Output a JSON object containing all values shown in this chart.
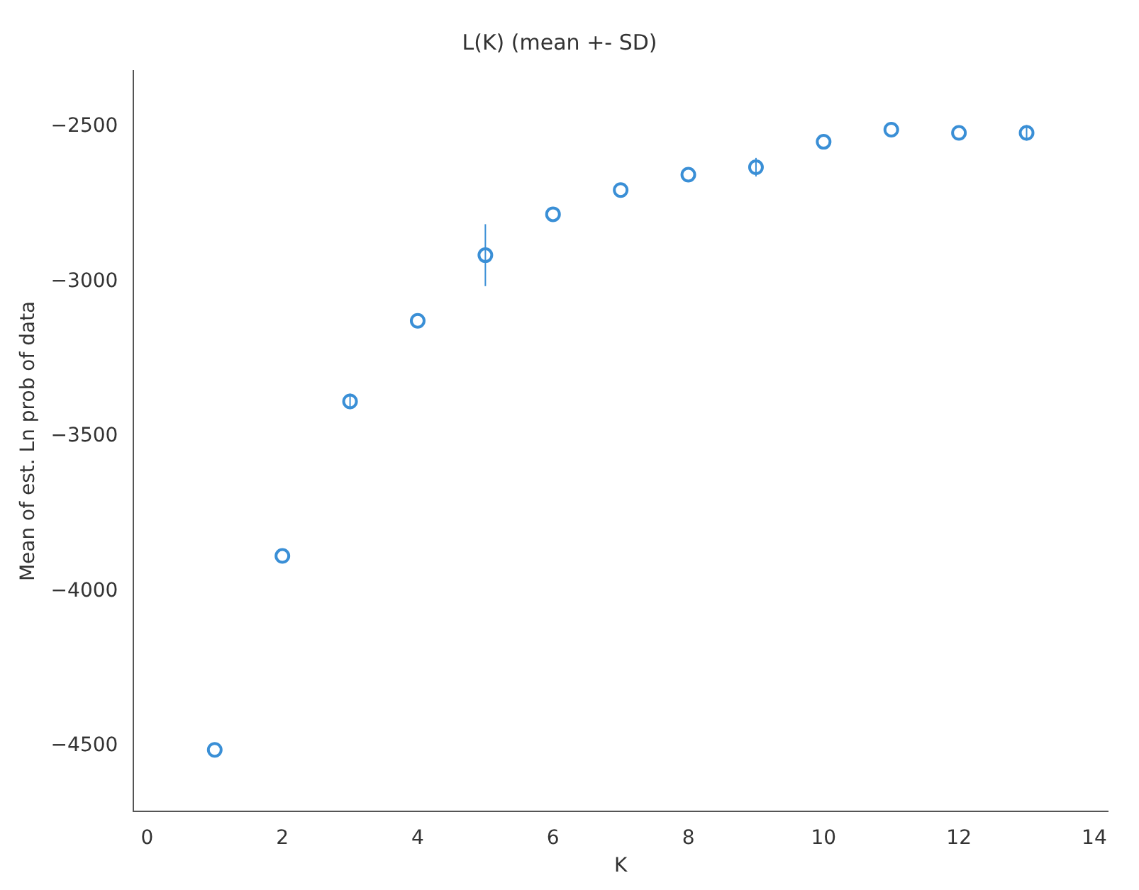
{
  "chart_data": {
    "type": "scatter",
    "title": "L(K) (mean +- SD)",
    "xlabel": "K",
    "ylabel": "Mean of est. Ln prob of data",
    "x": [
      1,
      2,
      3,
      4,
      5,
      6,
      7,
      8,
      9,
      10,
      11,
      12,
      13
    ],
    "series": [
      {
        "color": "#3a8fd6",
        "values": [
          -4512,
          -3886,
          -3387,
          -3127,
          -2915,
          -2783,
          -2705,
          -2655,
          -2631,
          -2549,
          -2510,
          -2520,
          -2520
        ],
        "errors": [
          null,
          null,
          25,
          null,
          100,
          null,
          null,
          null,
          30,
          null,
          null,
          null,
          25
        ]
      }
    ],
    "xlim": [
      -0.2,
      14.2
    ],
    "xticks": [
      0,
      2,
      4,
      6,
      8,
      10,
      12,
      14
    ],
    "ylim": [
      -4710,
      -2320
    ],
    "yticks": [
      -4500,
      -4000,
      -3500,
      -3000,
      -2500
    ],
    "marker": "circle",
    "grid": false,
    "legend": false
  }
}
